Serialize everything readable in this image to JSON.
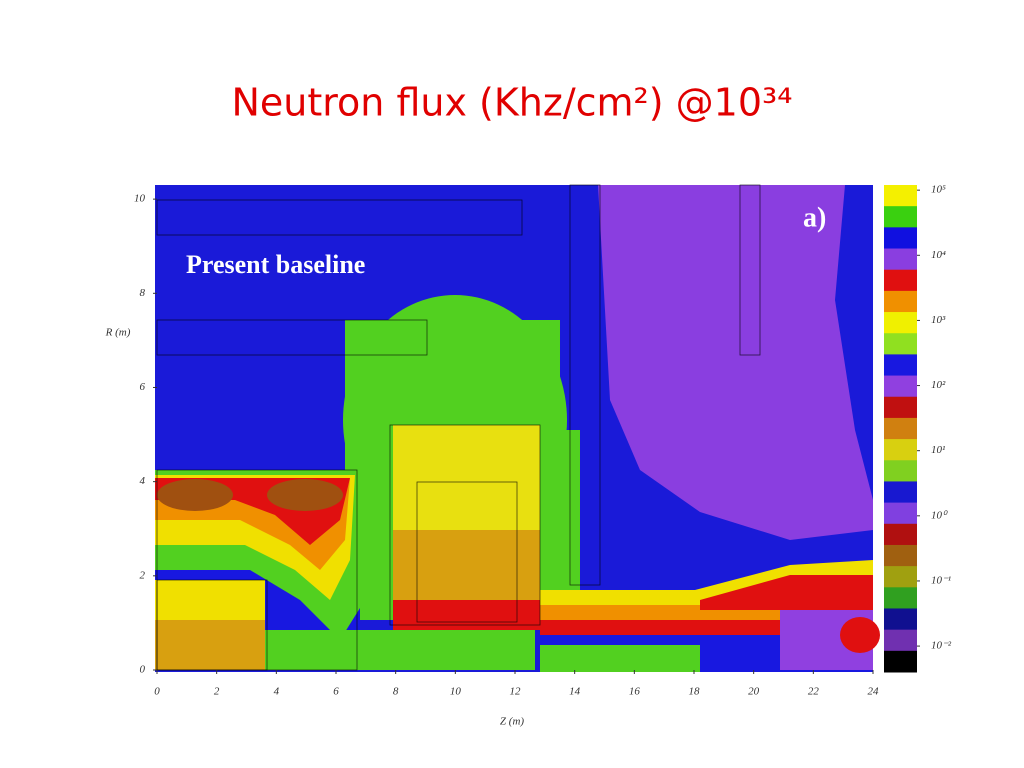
{
  "chart_data": {
    "type": "contour",
    "title": "Neutron flux (Khz/cm²) @10³⁴",
    "annotations": [
      "Present baseline",
      "a)"
    ],
    "x_label": "Z (m)",
    "y_label": "R (m)",
    "xlim": [
      0,
      24
    ],
    "xticks": [
      0,
      2,
      4,
      6,
      8,
      10,
      12,
      14,
      16,
      18,
      20,
      22,
      24
    ],
    "ylim": [
      0,
      10.3
    ],
    "yticks": [
      0,
      2,
      4,
      6,
      8,
      10
    ],
    "colorbar": {
      "scale": "log",
      "lim": [
        0.004,
        120000
      ],
      "ticks": [
        {
          "value": 100000,
          "label": "10⁵"
        },
        {
          "value": 10000,
          "label": "10⁴"
        },
        {
          "value": 1000,
          "label": "10³"
        },
        {
          "value": 100,
          "label": "10²"
        },
        {
          "value": 10,
          "label": "10¹"
        },
        {
          "value": 1,
          "label": "10⁰"
        },
        {
          "value": 0.1,
          "label": "10⁻¹"
        },
        {
          "value": 0.01,
          "label": "10⁻²"
        }
      ],
      "colors": [
        "#f4f000",
        "#3ad010",
        "#1010e0",
        "#8a3ee0",
        "#e01010",
        "#f09000",
        "#f0f000",
        "#90e020",
        "#1818e0",
        "#9040e0",
        "#c01010",
        "#d08010",
        "#d8d010",
        "#80d020",
        "#1818d0",
        "#8040e0",
        "#b01010",
        "#a06010",
        "#a0a010",
        "#30a020",
        "#101090",
        "#7030b0",
        "#000000"
      ]
    }
  }
}
